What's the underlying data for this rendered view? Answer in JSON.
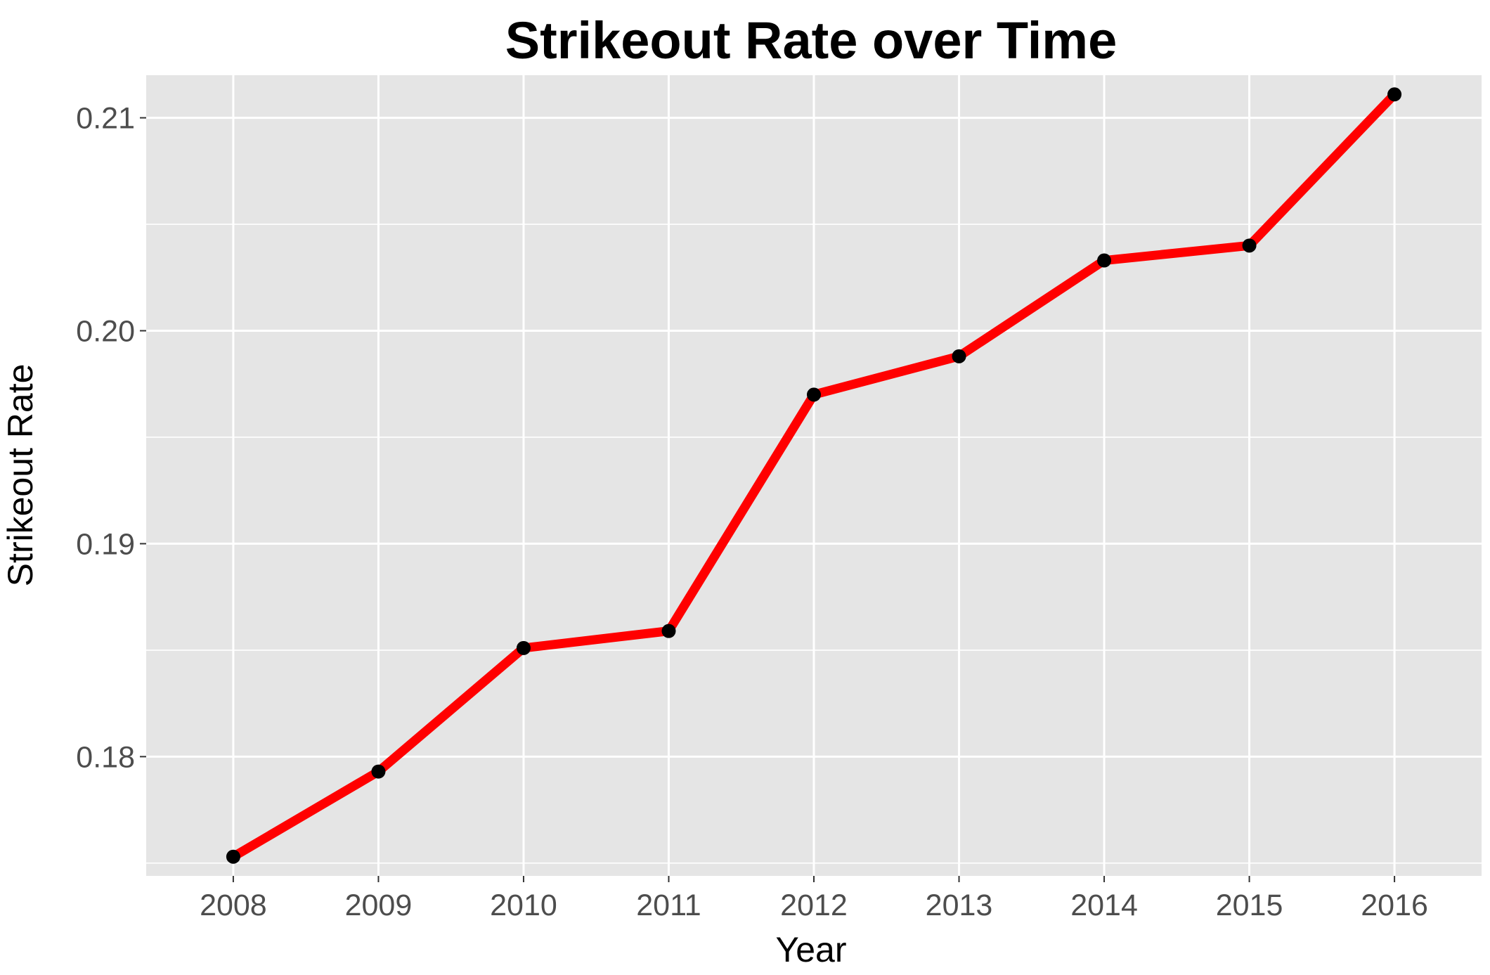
{
  "chart_data": {
    "type": "line",
    "title": "Strikeout Rate over Time",
    "xlabel": "Year",
    "ylabel": "Strikeout Rate",
    "x": [
      2008,
      2009,
      2010,
      2011,
      2012,
      2013,
      2014,
      2015,
      2016
    ],
    "series": [
      {
        "values": [
          0.1753,
          0.1793,
          0.1851,
          0.1859,
          0.197,
          0.1988,
          0.2033,
          0.204,
          0.2111
        ]
      }
    ],
    "xlim": [
      2007.4,
      2016.6
    ],
    "ylim": [
      0.1744,
      0.212
    ],
    "x_ticks": [
      "2008",
      "2009",
      "2010",
      "2011",
      "2012",
      "2013",
      "2014",
      "2015",
      "2016"
    ],
    "y_ticks": [
      "0.18",
      "0.19",
      "0.20",
      "0.21"
    ],
    "y_tick_values": [
      0.18,
      0.19,
      0.2,
      0.21
    ],
    "y_minor_values": [
      0.175,
      0.185,
      0.195,
      0.205
    ],
    "grid": true,
    "legend": "none",
    "colors": {
      "line": "#ff0000",
      "points": "#000000",
      "panel": "#e5e5e5",
      "grid": "#ffffff",
      "tick_text": "#4d4d4d"
    }
  }
}
